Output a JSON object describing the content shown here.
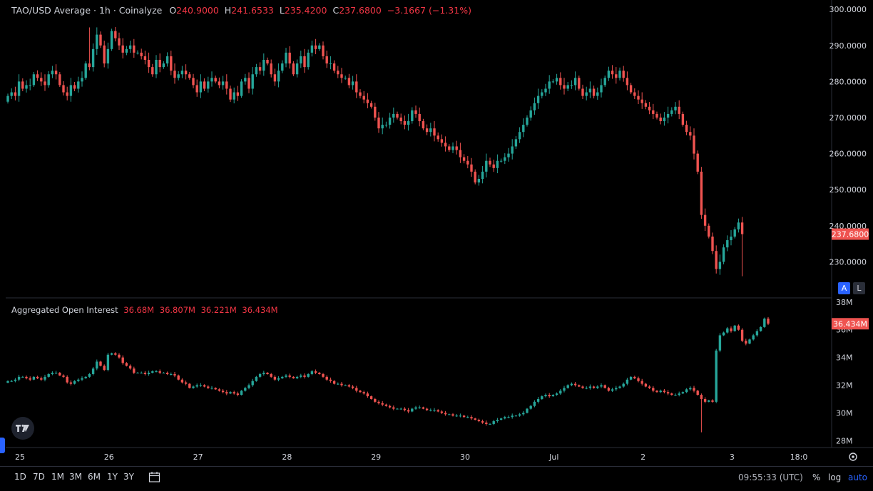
{
  "header": {
    "title": "TAO/USD Average · 1h · Coinalyze",
    "ohlc": [
      {
        "key": "O",
        "value": "240.9000"
      },
      {
        "key": "H",
        "value": "241.6533"
      },
      {
        "key": "L",
        "value": "235.4200"
      },
      {
        "key": "C",
        "value": "237.6800"
      }
    ],
    "change": "−3.1667 (−1.31%)"
  },
  "oi_header": {
    "title": "Aggregated Open Interest",
    "values": [
      "36.68M",
      "36.807M",
      "36.221M",
      "36.434M"
    ]
  },
  "price_axis_buttons": {
    "auto_label": "A",
    "log_label": "L"
  },
  "timeframes": [
    "1D",
    "7D",
    "1M",
    "3M",
    "6M",
    "1Y",
    "3Y"
  ],
  "footer": {
    "clock": "09:55:33 (UTC)",
    "percent": "%",
    "log": "log",
    "auto": "auto"
  },
  "colors": {
    "up": "#26a69a",
    "down": "#ef5350",
    "background": "#000000",
    "accent": "#2962ff"
  },
  "chart_data": [
    {
      "type": "candlestick",
      "title": "TAO/USD Average · 1h · Coinalyze",
      "y_ticks": [
        "300.0000",
        "290.0000",
        "280.0000",
        "270.0000",
        "260.0000",
        "250.0000",
        "240.0000",
        "230.0000"
      ],
      "ylim": [
        220,
        302.6
      ],
      "last_value_label": "237.6800",
      "last_value": 237.68,
      "x_ticks": [
        "25",
        "26",
        "27",
        "28",
        "29",
        "30",
        "Jul",
        "2",
        "3",
        "18:0"
      ],
      "x_tick_positions": [
        0,
        24,
        48,
        72,
        96,
        120,
        144,
        168,
        192,
        210
      ],
      "close": [
        276,
        277,
        276,
        280,
        278,
        279,
        279,
        282,
        281,
        280,
        279,
        282,
        283,
        282,
        279,
        277,
        276,
        279,
        278,
        280,
        281,
        285,
        284,
        289,
        293,
        290,
        285,
        289,
        294,
        292,
        290,
        288,
        289,
        290,
        288,
        288,
        287,
        286,
        284,
        282,
        286,
        284,
        285,
        287,
        283,
        281,
        282,
        283,
        282,
        281,
        279,
        277,
        280,
        278,
        280,
        281,
        280,
        279,
        280,
        278,
        275,
        277,
        276,
        280,
        281,
        278,
        282,
        284,
        283,
        286,
        285,
        282,
        280,
        283,
        285,
        288,
        285,
        282,
        285,
        287,
        284,
        288,
        290,
        289,
        290,
        287,
        285,
        285,
        283,
        282,
        281,
        281,
        279,
        280,
        277,
        276,
        275,
        274,
        273,
        270,
        267,
        268,
        268,
        270,
        271,
        270,
        269,
        268,
        269,
        272,
        271,
        269,
        267,
        266,
        267,
        265,
        264,
        263,
        262,
        261,
        262,
        261,
        259,
        258,
        257,
        255,
        252,
        253,
        255,
        258,
        257,
        256,
        258,
        258,
        259,
        260,
        262,
        264,
        266,
        268,
        270,
        272,
        274,
        276,
        277,
        278,
        280,
        280,
        281,
        279,
        278,
        279,
        279,
        281,
        278,
        276,
        277,
        278,
        276,
        277,
        279,
        281,
        283,
        282,
        281,
        283,
        281,
        279,
        277,
        276,
        275,
        274,
        273,
        272,
        271,
        270,
        269,
        270,
        271,
        272,
        273,
        271,
        268,
        266,
        265,
        260,
        255,
        243,
        240,
        237,
        233,
        228,
        230,
        234,
        236,
        237,
        239,
        240.9,
        237.68
      ],
      "low_extremes": [
        {
          "index": 198,
          "value": 226
        }
      ],
      "high_extremes": [
        {
          "index": 22,
          "value": 295
        }
      ]
    },
    {
      "type": "candlestick",
      "title": "Aggregated Open Interest",
      "y_ticks": [
        "38M",
        "36M",
        "34M",
        "32M",
        "30M",
        "28M"
      ],
      "ylim": [
        27.5,
        38.3
      ],
      "unit": "M",
      "last_value_label": "36.434M",
      "last_value": 36.434,
      "close": [
        32.3,
        32.3,
        32.4,
        32.6,
        32.6,
        32.5,
        32.4,
        32.6,
        32.5,
        32.4,
        32.6,
        32.8,
        32.9,
        32.9,
        32.7,
        32.6,
        32.2,
        32.1,
        32.3,
        32.4,
        32.5,
        32.6,
        32.8,
        33.2,
        33.7,
        33.4,
        33.1,
        34.2,
        34.3,
        34.2,
        34.0,
        33.6,
        33.4,
        33.2,
        32.9,
        32.9,
        32.9,
        32.8,
        32.9,
        33.0,
        33.0,
        32.9,
        32.9,
        32.8,
        32.8,
        32.7,
        32.4,
        32.2,
        32.1,
        31.8,
        31.9,
        32.0,
        32.0,
        31.9,
        31.8,
        31.8,
        31.7,
        31.6,
        31.5,
        31.4,
        31.5,
        31.4,
        31.3,
        31.6,
        31.8,
        32.0,
        32.3,
        32.6,
        32.8,
        32.9,
        32.8,
        32.6,
        32.4,
        32.5,
        32.6,
        32.7,
        32.6,
        32.5,
        32.6,
        32.7,
        32.6,
        32.8,
        33.0,
        32.9,
        32.8,
        32.6,
        32.4,
        32.3,
        32.1,
        32.1,
        32.0,
        32.0,
        31.9,
        31.8,
        31.6,
        31.5,
        31.4,
        31.2,
        31.0,
        30.8,
        30.7,
        30.6,
        30.5,
        30.4,
        30.3,
        30.3,
        30.3,
        30.2,
        30.1,
        30.3,
        30.4,
        30.4,
        30.3,
        30.2,
        30.2,
        30.2,
        30.1,
        30.0,
        29.9,
        29.9,
        29.8,
        29.8,
        29.8,
        29.7,
        29.7,
        29.6,
        29.5,
        29.4,
        29.3,
        29.2,
        29.2,
        29.4,
        29.5,
        29.6,
        29.7,
        29.7,
        29.8,
        29.8,
        29.9,
        30.0,
        30.3,
        30.5,
        30.8,
        31.0,
        31.2,
        31.3,
        31.2,
        31.3,
        31.4,
        31.6,
        31.8,
        32.0,
        32.1,
        32.0,
        31.9,
        31.8,
        31.8,
        31.9,
        31.8,
        31.9,
        32.0,
        31.8,
        31.6,
        31.7,
        31.8,
        31.9,
        32.1,
        32.4,
        32.6,
        32.5,
        32.3,
        32.1,
        31.9,
        31.8,
        31.6,
        31.5,
        31.6,
        31.5,
        31.4,
        31.3,
        31.3,
        31.4,
        31.5,
        31.7,
        31.8,
        31.6,
        31.3,
        31.0,
        30.8,
        30.9,
        30.8,
        34.5,
        35.6,
        35.8,
        36.1,
        35.9,
        36.3,
        36.0,
        35.2,
        35.0,
        35.3,
        35.6,
        35.9,
        36.2,
        36.8,
        36.434
      ],
      "low_extremes": [
        {
          "index": 187,
          "value": 28.6
        }
      ]
    }
  ]
}
